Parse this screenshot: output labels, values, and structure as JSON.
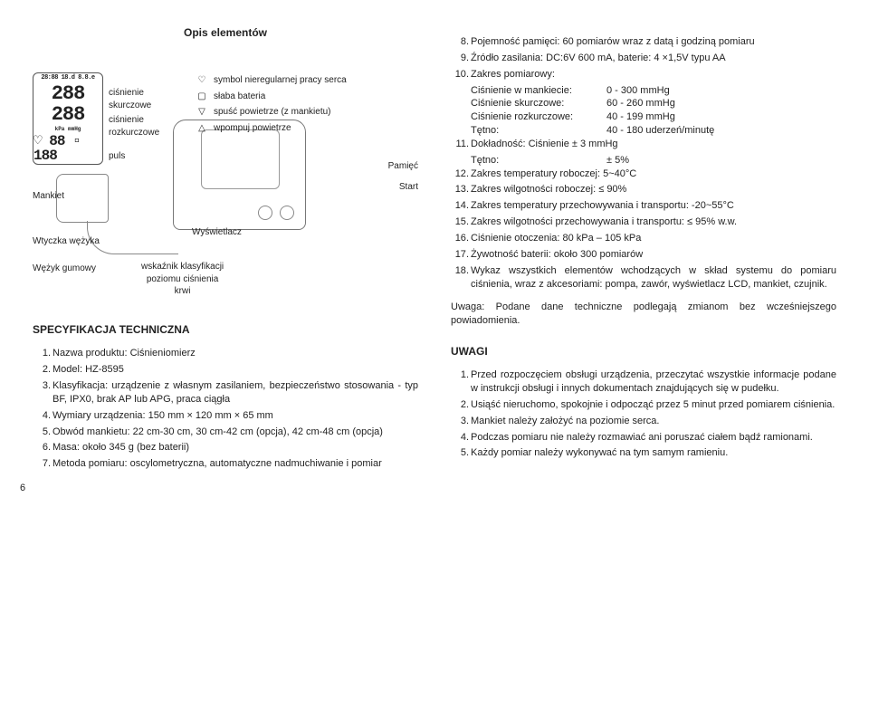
{
  "diagram": {
    "title": "Opis elementów",
    "labels": {
      "systolic": "ciśnienie\nskurczowe",
      "diastolic": "ciśnienie\nrozkurczowe",
      "pulse": "puls",
      "cuff": "Mankiet",
      "plug": "Wtyczka wężyka",
      "tube": "Wężyk gumowy",
      "display": "Wyświetlacz",
      "indicator": "wskaźnik klasyfikacji\npoziomu ciśnienia\nkrwi",
      "memory": "Pamięć",
      "start": "Start"
    },
    "legend": [
      {
        "glyph": "♡",
        "text": "symbol nieregularnej pracy serca"
      },
      {
        "glyph": "▢",
        "text": "słaba bateria"
      },
      {
        "glyph": "▽",
        "text": "spuść powietrze (z mankietu)"
      },
      {
        "glyph": "△",
        "text": "wpompuj powietrze"
      }
    ],
    "lcd": {
      "time": "28:88 18.d 8.8.e",
      "big1": "288",
      "big2": "288",
      "units": "kPa  mmHg",
      "med": "♡ 88 ▫ 188"
    }
  },
  "leftSpecs": {
    "header": "SPECYFIKACJA TECHNICZNA",
    "items": [
      "Nazwa produktu: Ciśnieniomierz",
      "Model: HZ-8595",
      "Klasyfikacja: urządzenie z własnym zasilaniem, bezpieczeństwo stosowania - typ BF, IPX0, brak AP lub APG, praca ciągła",
      "Wymiary urządzenia: 150 mm × 120 mm × 65 mm",
      "Obwód mankietu: 22 cm-30 cm, 30 cm-42 cm (opcja), 42 cm-48 cm (opcja)",
      "Masa: około 345 g (bez baterii)",
      "Metoda pomiaru: oscylometryczna, automatyczne nadmuchi­wanie i pomiar"
    ]
  },
  "rightTop": {
    "items": [
      "Pojemność pamięci: 60 pomiarów wraz z datą i godziną pomiaru",
      "Źródło zasilania: DC:6V 600 mA, baterie: 4 ×1,5V typu AA",
      "Zakres pomiarowy:",
      "Dokładność: Ciśnienie ± 3 mmHg",
      "Zakres temperatury roboczej: 5~40°C",
      "Zakres wilgotności roboczej: ≤ 90%",
      "Zakres temperatury przechowywania i transportu: -20~55°C",
      "Zakres wilgotności przechowywania i transportu: ≤ 95% w.w.",
      "Ciśnienie otoczenia: 80 kPa – 105 kPa",
      "Żywotność baterii: około 300 pomiarów",
      "Wykaz wszystkich elementów wchodzących w skład systemu do pomiaru ciśnienia, wraz z akcesoriami: pompa, zawór, wyświetlacz LCD, mankiet, czujnik."
    ],
    "item10sub": [
      {
        "k": "Ciśnienie w mankiecie:",
        "v": "0 - 300 mmHg"
      },
      {
        "k": "Ciśnienie skurczowe:",
        "v": "60 - 260 mmHg"
      },
      {
        "k": "Ciśnienie rozkurczowe:",
        "v": "40 - 199 mmHg"
      },
      {
        "k": "Tętno:",
        "v": "40 - 180 uderzeń/minutę"
      }
    ],
    "item11extra": {
      "k": "Tętno:",
      "v": "± 5%"
    },
    "note": "Uwaga: Podane dane techniczne podlegają zmianom bez wcześniejszego powiadomienia."
  },
  "uwagi": {
    "header": "UWAGI",
    "items": [
      "Przed rozpoczęciem obsługi urządzenia, przeczytać wszystkie informacje podane w instrukcji obsługi i innych dokumentach znajdujących się w pudełku.",
      "Usiąść nieruchomo, spokojnie i odpocząć przez 5 minut przed pomiarem ciśnienia.",
      "Mankiet należy założyć na poziomie serca.",
      "Podczas pomiaru nie należy rozmawiać ani poruszać ciałem bądź ramionami.",
      "Każdy pomiar należy wykonywać na tym samym ramieniu."
    ]
  },
  "startNum": {
    "rightTop": 8,
    "leftSpecs": 1,
    "uwagi": 1
  },
  "pageNumber": "6"
}
